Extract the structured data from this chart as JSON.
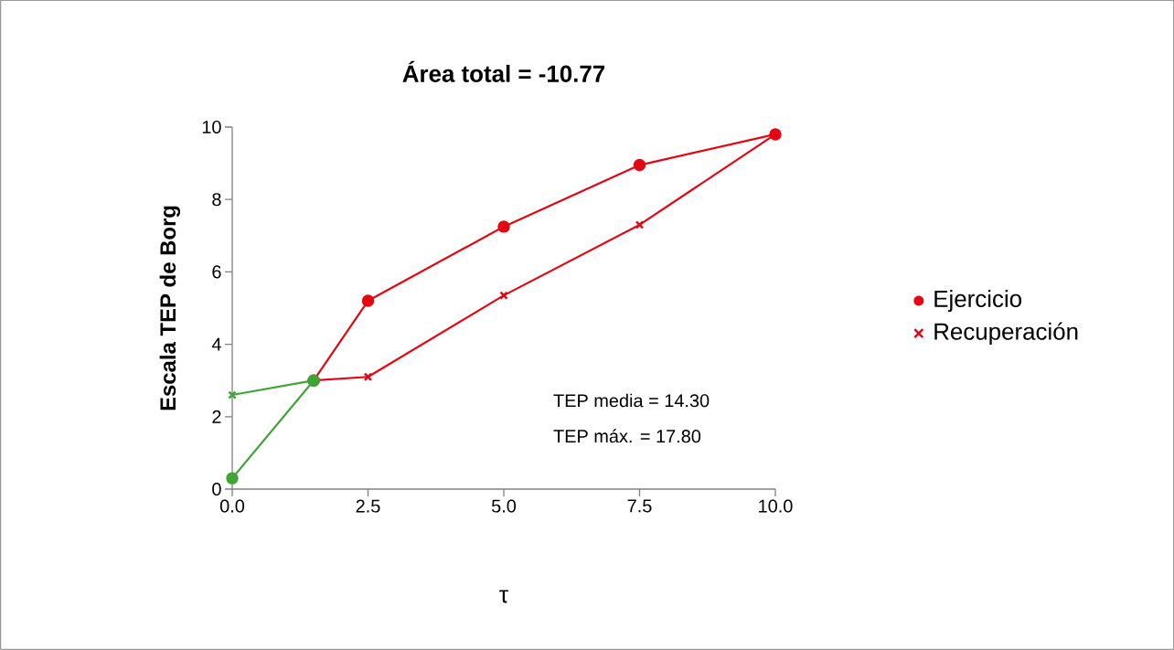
{
  "chart_data": {
    "type": "line",
    "title": "Área total = -10.77",
    "xlabel": "τ",
    "ylabel": "Escala TEP de Borg",
    "series": [
      {
        "name": "Ejercicio",
        "color": "#e30613",
        "marker": "circle",
        "x": [
          1.5,
          2.5,
          5,
          7.5,
          10
        ],
        "values": [
          3.0,
          5.2,
          7.25,
          8.95,
          9.8
        ]
      },
      {
        "name": "Recuperación",
        "color": "#e30613",
        "marker": "cross",
        "x": [
          1.5,
          2.5,
          5,
          7.5,
          10
        ],
        "values": [
          3.0,
          3.1,
          5.35,
          7.3,
          9.8
        ]
      },
      {
        "color": "#3fa535",
        "marker": "circle",
        "x": [
          0,
          1.5
        ],
        "values": [
          0.3,
          3.0
        ]
      },
      {
        "color": "#3fa535",
        "marker": "cross",
        "x": [
          0,
          1.5
        ],
        "values": [
          2.6,
          3.0
        ]
      }
    ],
    "xlim": [
      0,
      10
    ],
    "ylim": [
      0,
      10
    ],
    "xticks": [
      {
        "value": 0,
        "label": "0.0"
      },
      {
        "value": 2.5,
        "label": "2.5"
      },
      {
        "value": 5,
        "label": "5.0"
      },
      {
        "value": 7.5,
        "label": "7.5"
      },
      {
        "value": 10,
        "label": "10.0"
      }
    ],
    "yticks": [
      0,
      2,
      4,
      6,
      8,
      10
    ],
    "annotations": [
      "TEP media = 14.30",
      "TEP máx. = 17.80"
    ],
    "legend": "right",
    "grid": false
  }
}
